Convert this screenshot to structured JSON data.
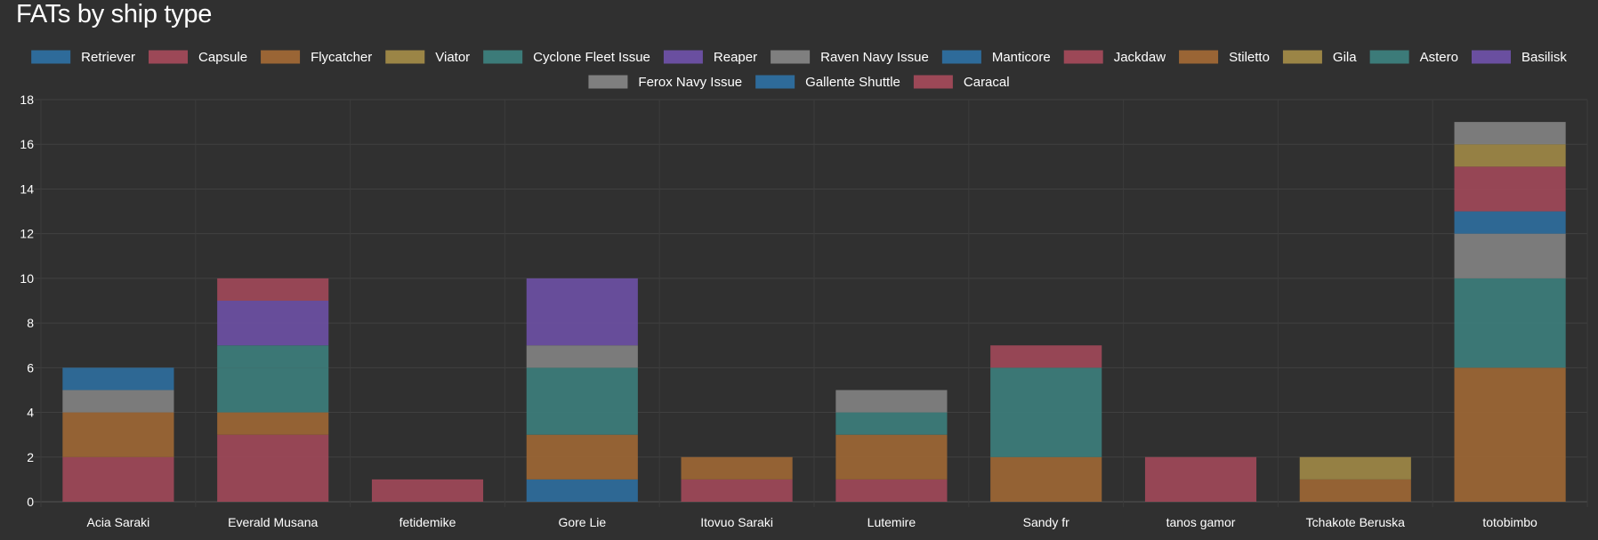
{
  "card": {
    "title": "FATs by ship type"
  },
  "chart_data": {
    "type": "bar",
    "stacked": true,
    "title": "FATs by ship type",
    "xlabel": "",
    "ylabel": "",
    "ylim": [
      0,
      18
    ],
    "yticks": [
      0,
      2,
      4,
      6,
      8,
      10,
      12,
      14,
      16,
      18
    ],
    "grid": true,
    "legend": "top-center",
    "categories": [
      "Acia Saraki",
      "Everald Musana",
      "fetidemike",
      "Gore Lie",
      "Itovuo Saraki",
      "Lutemire",
      "Sandy fr",
      "tanos gamor",
      "Tchakote Beruska",
      "totobimbo"
    ],
    "series": [
      {
        "name": "Retriever",
        "color": "#2e6b9a",
        "values": [
          0,
          0,
          0,
          1,
          0,
          0,
          0,
          0,
          0,
          0
        ]
      },
      {
        "name": "Capsule",
        "color": "#9c4857",
        "values": [
          2,
          3,
          1,
          0,
          1,
          1,
          0,
          2,
          0,
          0
        ]
      },
      {
        "name": "Flycatcher",
        "color": "#9a6535",
        "values": [
          2,
          1,
          0,
          2,
          1,
          2,
          2,
          0,
          1,
          6
        ]
      },
      {
        "name": "Viator",
        "color": "#9b8546",
        "values": [
          0,
          0,
          0,
          0,
          0,
          0,
          0,
          0,
          1,
          0
        ]
      },
      {
        "name": "Cyclone Fleet Issue",
        "color": "#3c7b79",
        "values": [
          0,
          2,
          0,
          3,
          0,
          1,
          4,
          0,
          0,
          4
        ]
      },
      {
        "name": "Reaper",
        "color": "#6a4fa0",
        "values": [
          0,
          0,
          0,
          0,
          0,
          0,
          0,
          0,
          0,
          0
        ]
      },
      {
        "name": "Raven Navy Issue",
        "color": "#7f7f7f",
        "values": [
          1,
          0,
          0,
          1,
          0,
          1,
          0,
          0,
          0,
          2
        ]
      },
      {
        "name": "Manticore",
        "color": "#2e6b9a",
        "values": [
          1,
          0,
          0,
          0,
          0,
          0,
          0,
          0,
          0,
          1
        ]
      },
      {
        "name": "Jackdaw",
        "color": "#9c4857",
        "values": [
          0,
          0,
          0,
          0,
          0,
          0,
          1,
          0,
          0,
          2
        ]
      },
      {
        "name": "Stiletto",
        "color": "#9a6535",
        "values": [
          0,
          0,
          0,
          0,
          0,
          0,
          0,
          0,
          0,
          0
        ]
      },
      {
        "name": "Gila",
        "color": "#9b8546",
        "values": [
          0,
          0,
          0,
          0,
          0,
          0,
          0,
          0,
          0,
          1
        ]
      },
      {
        "name": "Astero",
        "color": "#3c7b79",
        "values": [
          0,
          1,
          0,
          0,
          0,
          0,
          0,
          0,
          0,
          0
        ]
      },
      {
        "name": "Basilisk",
        "color": "#6a4fa0",
        "values": [
          0,
          2,
          0,
          3,
          0,
          0,
          0,
          0,
          0,
          0
        ]
      },
      {
        "name": "Ferox Navy Issue",
        "color": "#7f7f7f",
        "values": [
          0,
          0,
          0,
          0,
          0,
          0,
          0,
          0,
          0,
          1
        ]
      },
      {
        "name": "Gallente Shuttle",
        "color": "#2e6b9a",
        "values": [
          0,
          0,
          0,
          0,
          0,
          0,
          0,
          0,
          0,
          0
        ]
      },
      {
        "name": "Caracal",
        "color": "#9c4857",
        "values": [
          0,
          1,
          0,
          0,
          0,
          0,
          0,
          0,
          0,
          0
        ]
      }
    ]
  }
}
